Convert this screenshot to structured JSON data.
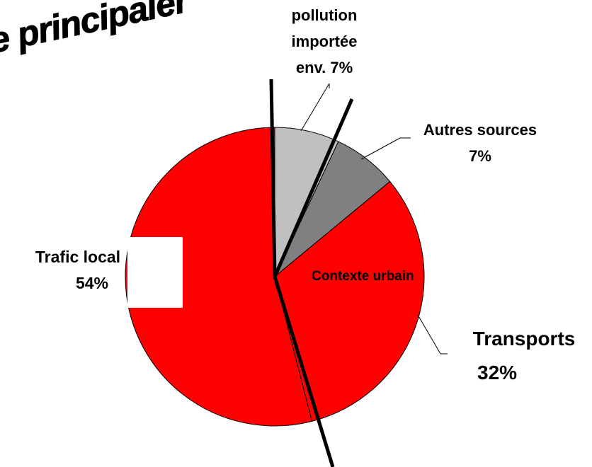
{
  "chart_data": {
    "type": "pie",
    "title": "e principaler",
    "categories": [
      "pollution importée",
      "Autres sources",
      "Transports",
      "Trafic local"
    ],
    "values": [
      7,
      7,
      32,
      54
    ],
    "value_labels": [
      "env. 7%",
      "7%",
      "32%",
      "54%"
    ],
    "colors": [
      "#c0c0c0",
      "#808080",
      "#ff0000",
      "#ff0000"
    ],
    "annotation": "Contexte urbain"
  }
}
